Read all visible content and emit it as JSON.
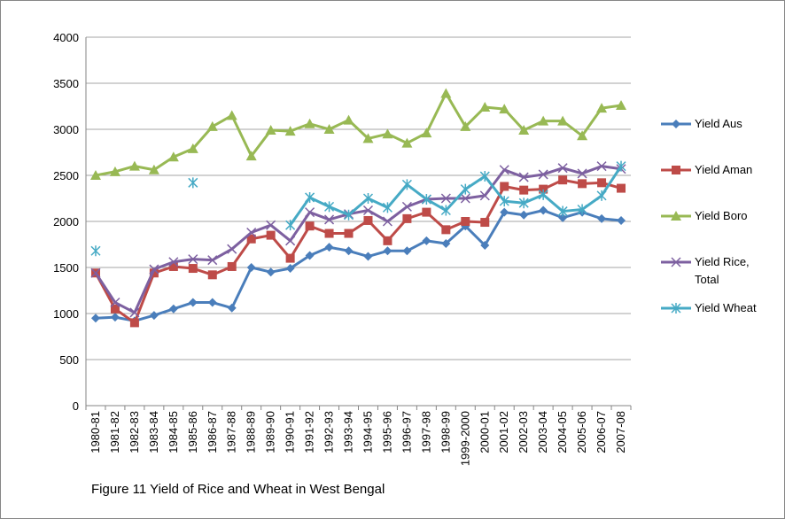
{
  "chart_data": {
    "type": "line",
    "title": "Figure 11  Yield of Rice and Wheat in West Bengal",
    "categories": [
      "1980-81",
      "1981-82",
      "1982-83",
      "1983-84",
      "1984-85",
      "1985-86",
      "1986-87",
      "1987-88",
      "1988-89",
      "1989-90",
      "1990-91",
      "1991-92",
      "1992-93",
      "1993-94",
      "1994-95",
      "1995-96",
      "1996-97",
      "1997-98",
      "1998-99",
      "1999-2000",
      "2000-01",
      "2001-02",
      "2002-03",
      "2003-04",
      "2004-05",
      "2005-06",
      "2006-07",
      "2007-08"
    ],
    "series": [
      {
        "name": "Yield Aus",
        "color": "#4a7ebb",
        "marker": "diamond",
        "values": [
          950,
          960,
          920,
          980,
          1050,
          1120,
          1120,
          1060,
          1500,
          1450,
          1490,
          1630,
          1720,
          1680,
          1620,
          1680,
          1680,
          1790,
          1760,
          1950,
          1740,
          2100,
          2070,
          2120,
          2040,
          2100,
          2030,
          2010
        ]
      },
      {
        "name": "Yield Aman",
        "color": "#be4b48",
        "marker": "square",
        "values": [
          1440,
          1050,
          900,
          1440,
          1510,
          1490,
          1420,
          1510,
          1810,
          1850,
          1600,
          1950,
          1870,
          1870,
          2010,
          1790,
          2030,
          2100,
          1910,
          2000,
          1990,
          2380,
          2340,
          2350,
          2450,
          2410,
          2420,
          2360
        ]
      },
      {
        "name": "Yield Boro",
        "color": "#98b954",
        "marker": "triangle",
        "values": [
          2500,
          2540,
          2600,
          2560,
          2700,
          2790,
          3030,
          3150,
          2710,
          2990,
          2980,
          3060,
          3000,
          3100,
          2900,
          2950,
          2850,
          2960,
          3390,
          3030,
          3240,
          3220,
          2990,
          3090,
          3090,
          2930,
          3230,
          3260
        ]
      },
      {
        "name": "Yield Rice, Total",
        "color": "#7d60a0",
        "marker": "x",
        "values": [
          1440,
          1120,
          1010,
          1480,
          1560,
          1590,
          1580,
          1700,
          1880,
          1960,
          1790,
          2100,
          2020,
          2080,
          2120,
          2000,
          2160,
          2240,
          2250,
          2250,
          2280,
          2560,
          2480,
          2510,
          2580,
          2520,
          2600,
          2570
        ]
      },
      {
        "name": "Yield Wheat",
        "color": "#46aac5",
        "marker": "star",
        "values": [
          1680,
          null,
          null,
          null,
          null,
          2420,
          null,
          null,
          null,
          null,
          1960,
          2260,
          2160,
          2070,
          2250,
          2150,
          2400,
          2240,
          2120,
          2350,
          2490,
          2220,
          2200,
          2290,
          2110,
          2130,
          2280,
          2600
        ]
      }
    ],
    "ylim": [
      0,
      4000
    ],
    "yticks": [
      0,
      500,
      1000,
      1500,
      2000,
      2500,
      3000,
      3500,
      4000
    ],
    "grid": true,
    "legend": "right"
  }
}
